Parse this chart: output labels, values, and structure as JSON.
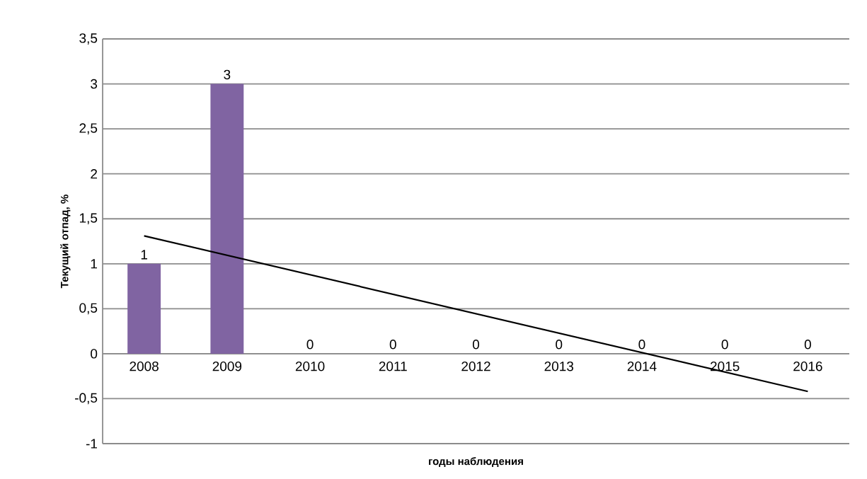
{
  "chart_data": {
    "type": "bar",
    "xlabel": "годы наблюдения",
    "ylabel": "Текущий отпад, %",
    "x": [
      2008,
      2009,
      2010,
      2011,
      2012,
      2013,
      2014,
      2015,
      2016
    ],
    "xlim": [
      2007.5,
      2016.5
    ],
    "xticks": [
      2008,
      2009,
      2010,
      2011,
      2012,
      2013,
      2014,
      2015,
      2016
    ],
    "ylim": [
      -1,
      3.5
    ],
    "yticks": [
      -1,
      {
        "value": -0.5,
        "label": "-0,5"
      },
      0,
      {
        "value": 0.5,
        "label": "0,5"
      },
      1,
      {
        "value": 1.5,
        "label": "1,5"
      },
      2,
      {
        "value": 2.5,
        "label": "2,5"
      },
      3,
      {
        "value": 3.5,
        "label": "3,5"
      }
    ],
    "grid": "y",
    "series": [
      {
        "color": "#8064a2",
        "values": [
          1,
          3,
          0,
          0,
          0,
          0,
          0,
          0,
          0
        ],
        "data_labels": true
      },
      {
        "type": "line",
        "color": "#000000",
        "x": [
          2008,
          2016
        ],
        "values": [
          1.31,
          -0.42
        ]
      }
    ]
  }
}
